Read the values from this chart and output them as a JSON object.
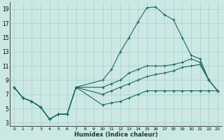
{
  "xlabel": "Humidex (Indice chaleur)",
  "background_color": "#cce8e5",
  "grid_color": "#aacfcc",
  "line_color": "#1a6b60",
  "xlim": [
    -0.5,
    23.5
  ],
  "ylim": [
    2.5,
    20
  ],
  "xticks": [
    0,
    1,
    2,
    3,
    4,
    5,
    6,
    7,
    8,
    9,
    10,
    11,
    12,
    13,
    14,
    15,
    16,
    17,
    18,
    19,
    20,
    21,
    22,
    23
  ],
  "yticks": [
    3,
    5,
    7,
    9,
    11,
    13,
    15,
    17,
    19
  ],
  "line_main_x": [
    0,
    1,
    2,
    3,
    4,
    5,
    6,
    7,
    10,
    11,
    12,
    13,
    14,
    15,
    16,
    17,
    18,
    19,
    20,
    21,
    22,
    23
  ],
  "line_main_y": [
    8,
    6.5,
    6,
    5.2,
    3.5,
    4.2,
    4.2,
    8,
    9,
    10.5,
    13,
    15,
    17.2,
    19.2,
    19.3,
    18.2,
    17.5,
    15,
    12.5,
    12,
    9,
    7.5
  ],
  "line_low_x": [
    0,
    1,
    2,
    3,
    4,
    5,
    6,
    7,
    10,
    11,
    12,
    13,
    14,
    15,
    16,
    17,
    18,
    19,
    20,
    21,
    22,
    23
  ],
  "line_low_y": [
    8,
    6.5,
    6,
    5.2,
    3.5,
    4.2,
    4.2,
    8,
    5.5,
    5.8,
    6,
    6.5,
    7,
    7.5,
    7.5,
    7.5,
    7.5,
    7.5,
    7.5,
    7.5,
    7.5,
    7.5
  ],
  "line_mid_x": [
    0,
    1,
    2,
    3,
    4,
    5,
    6,
    7,
    10,
    11,
    12,
    13,
    14,
    15,
    16,
    17,
    18,
    19,
    20,
    21,
    22,
    23
  ],
  "line_mid_y": [
    8,
    6.5,
    6,
    5.2,
    3.5,
    4.2,
    4.2,
    8,
    7,
    7.5,
    8,
    8.5,
    9,
    9.5,
    9.8,
    10,
    10.3,
    10.8,
    11,
    11.2,
    9,
    7.5
  ],
  "line_top_x": [
    0,
    1,
    2,
    3,
    4,
    5,
    6,
    7,
    10,
    11,
    12,
    13,
    14,
    15,
    16,
    17,
    18,
    19,
    20,
    21,
    22,
    23
  ],
  "line_top_y": [
    8,
    6.5,
    6,
    5.2,
    3.5,
    4.2,
    4.2,
    8,
    8,
    8.5,
    9,
    10,
    10.5,
    11,
    11,
    11,
    11.2,
    11.5,
    12,
    11.5,
    9,
    7.5
  ]
}
